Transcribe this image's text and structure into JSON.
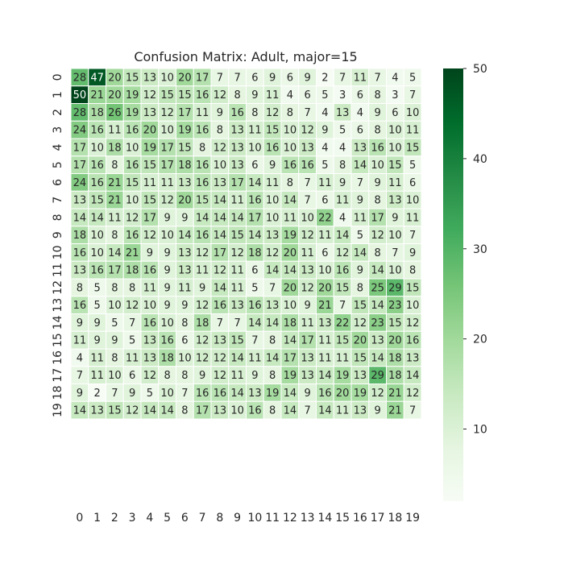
{
  "chart_data": {
    "type": "heatmap",
    "title": "Confusion Matrix: Adult, major=15",
    "xlabel": "",
    "ylabel": "",
    "x_labels": [
      "0",
      "1",
      "2",
      "3",
      "4",
      "5",
      "6",
      "7",
      "8",
      "9",
      "10",
      "11",
      "12",
      "13",
      "14",
      "15",
      "16",
      "17",
      "18",
      "19"
    ],
    "y_labels": [
      "0",
      "1",
      "2",
      "3",
      "4",
      "5",
      "6",
      "7",
      "8",
      "9",
      "10",
      "11",
      "12",
      "13",
      "14",
      "15",
      "16",
      "17",
      "18",
      "19"
    ],
    "colormap": "Greens",
    "color_low": "#f7fcf5",
    "color_high": "#00441b",
    "vmin": 2,
    "vmax": 50,
    "colorbar_ticks": [
      10,
      20,
      30,
      40,
      50
    ],
    "matrix": [
      [
        28,
        47,
        20,
        15,
        13,
        10,
        20,
        17,
        7,
        7,
        6,
        9,
        6,
        9,
        2,
        7,
        11,
        7,
        4,
        5
      ],
      [
        50,
        21,
        20,
        19,
        12,
        15,
        15,
        16,
        12,
        8,
        9,
        11,
        4,
        6,
        5,
        3,
        6,
        8,
        3,
        7
      ],
      [
        28,
        18,
        26,
        19,
        13,
        12,
        17,
        11,
        9,
        16,
        8,
        12,
        8,
        7,
        4,
        13,
        4,
        9,
        6,
        10
      ],
      [
        24,
        16,
        11,
        16,
        20,
        10,
        19,
        16,
        8,
        13,
        11,
        15,
        10,
        12,
        9,
        5,
        6,
        8,
        10,
        11
      ],
      [
        17,
        10,
        18,
        10,
        19,
        17,
        15,
        8,
        12,
        13,
        10,
        16,
        10,
        13,
        4,
        4,
        13,
        16,
        10,
        15
      ],
      [
        17,
        16,
        8,
        16,
        15,
        17,
        18,
        16,
        10,
        13,
        6,
        9,
        16,
        16,
        5,
        8,
        14,
        10,
        15,
        5
      ],
      [
        24,
        16,
        21,
        15,
        11,
        11,
        13,
        16,
        13,
        17,
        14,
        11,
        8,
        7,
        11,
        9,
        7,
        9,
        11,
        6
      ],
      [
        13,
        15,
        21,
        10,
        15,
        12,
        20,
        15,
        14,
        11,
        16,
        10,
        14,
        7,
        6,
        11,
        9,
        8,
        13,
        10
      ],
      [
        14,
        14,
        11,
        12,
        17,
        9,
        9,
        14,
        14,
        14,
        17,
        10,
        11,
        10,
        22,
        4,
        11,
        17,
        9,
        11
      ],
      [
        18,
        10,
        8,
        16,
        12,
        10,
        14,
        16,
        14,
        15,
        14,
        13,
        19,
        12,
        11,
        14,
        5,
        12,
        10,
        7
      ],
      [
        16,
        10,
        14,
        21,
        9,
        9,
        13,
        12,
        17,
        12,
        18,
        12,
        20,
        11,
        6,
        12,
        14,
        8,
        7,
        9
      ],
      [
        13,
        16,
        17,
        18,
        16,
        9,
        13,
        11,
        12,
        11,
        6,
        14,
        14,
        13,
        10,
        16,
        9,
        14,
        10,
        8
      ],
      [
        8,
        5,
        8,
        8,
        11,
        9,
        11,
        9,
        14,
        11,
        5,
        7,
        20,
        12,
        20,
        15,
        8,
        25,
        29,
        15
      ],
      [
        16,
        5,
        10,
        12,
        10,
        9,
        9,
        12,
        16,
        13,
        16,
        13,
        10,
        9,
        21,
        7,
        15,
        14,
        23,
        10
      ],
      [
        9,
        9,
        5,
        7,
        16,
        10,
        8,
        18,
        7,
        7,
        14,
        14,
        18,
        11,
        13,
        22,
        12,
        23,
        15,
        12
      ],
      [
        11,
        9,
        9,
        5,
        13,
        16,
        6,
        12,
        13,
        15,
        7,
        8,
        14,
        17,
        11,
        15,
        20,
        13,
        20,
        16
      ],
      [
        4,
        11,
        8,
        11,
        13,
        18,
        10,
        12,
        12,
        14,
        11,
        14,
        17,
        13,
        11,
        11,
        15,
        14,
        18,
        13
      ],
      [
        7,
        11,
        10,
        6,
        12,
        8,
        8,
        9,
        12,
        11,
        9,
        8,
        19,
        13,
        14,
        19,
        13,
        29,
        18,
        14
      ],
      [
        9,
        2,
        7,
        9,
        5,
        10,
        7,
        16,
        16,
        14,
        13,
        19,
        14,
        9,
        16,
        20,
        19,
        12,
        21,
        12
      ],
      [
        14,
        13,
        15,
        12,
        14,
        14,
        8,
        17,
        13,
        10,
        16,
        8,
        14,
        7,
        14,
        11,
        13,
        9,
        21,
        7
      ]
    ]
  }
}
